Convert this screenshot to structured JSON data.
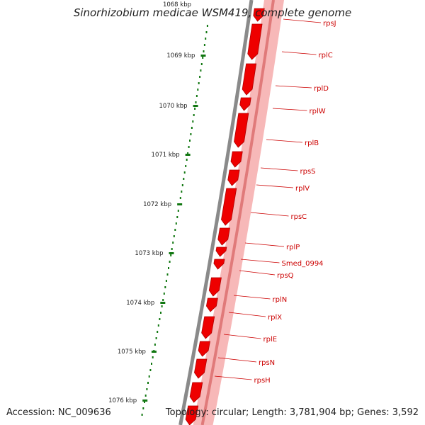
{
  "title": "Sinorhizobium medicae WSM419, complete genome",
  "footer": {
    "accession": "Accession: NC_009636",
    "topology": "Topology: circular; Length: 3,781,904 bp; Genes: 3,592"
  },
  "ticks": [
    {
      "label": "1069 kbp"
    },
    {
      "label": "1070 kbp"
    },
    {
      "label": "1071 kbp"
    },
    {
      "label": "1072 kbp"
    },
    {
      "label": "1073 kbp"
    },
    {
      "label": "1074 kbp"
    },
    {
      "label": "1075 kbp"
    },
    {
      "label": "1076 kbp"
    }
  ],
  "cut_tick_label": "1068 kbp",
  "genes": [
    "rpsJ",
    "rplC",
    "rplD",
    "rplW",
    "rplB",
    "rpsS",
    "rplV",
    "rpsC",
    "rplP",
    "Smed_0994",
    "rpsQ",
    "rplN",
    "rplX",
    "rplE",
    "rpsN",
    "rpsH"
  ],
  "colors": {
    "gene": "#ee0000",
    "gene_dark": "#b00000",
    "label": "#cc0000",
    "ring": "#8a8a8a",
    "ruler_dots": "#117711",
    "band": "#f4a0a0"
  }
}
